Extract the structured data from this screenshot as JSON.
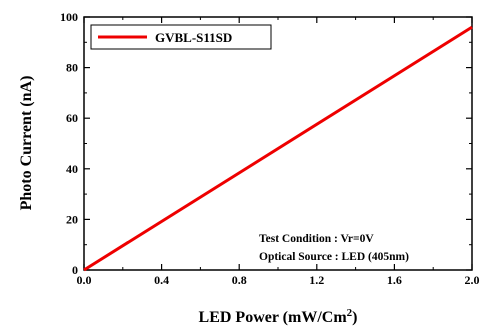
{
  "chart_data": {
    "type": "line",
    "x_label": "LED Power (mW/Cm",
    "x_label_superscript": "2",
    "x_label_close": ")",
    "y_label": "Photo Current (nA)",
    "xlim": [
      0.0,
      2.0
    ],
    "ylim": [
      0,
      100
    ],
    "x_ticks": [
      "0.0",
      "0.4",
      "0.8",
      "1.2",
      "1.6",
      "2.0"
    ],
    "y_ticks": [
      "0",
      "20",
      "40",
      "60",
      "80",
      "100"
    ],
    "grid": false,
    "legend_position": "top-left",
    "series": [
      {
        "name": "GVBL-S11SD",
        "color": "#ee0000",
        "x": [
          0.0,
          2.0
        ],
        "y": [
          0,
          96
        ]
      }
    ],
    "annotations": [
      "Test Condition : Vr=0V",
      "Optical Source : LED (405nm)"
    ]
  }
}
